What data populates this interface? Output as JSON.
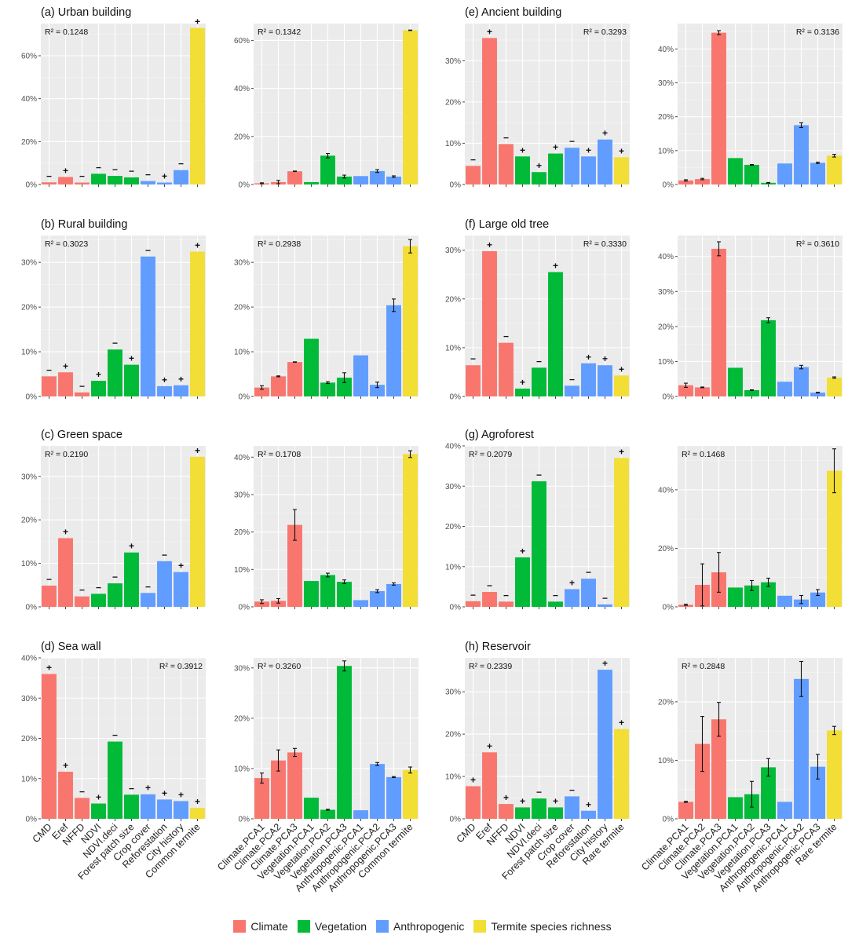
{
  "colors": {
    "Climate": "#F8766D",
    "Vegetation": "#00BA38",
    "Anthropogenic": "#619CFF",
    "Termite species richness": "#F2DE35",
    "panel_bg": "#EBEBEB",
    "grid": "#FFFFFF"
  },
  "legend": {
    "position": "bottom",
    "items": [
      {
        "label": "Climate",
        "group": "Climate"
      },
      {
        "label": "Vegetation",
        "group": "Vegetation"
      },
      {
        "label": "Anthropogenic",
        "group": "Anthropogenic"
      },
      {
        "label": "Termite species richness",
        "group": "Termite species richness"
      }
    ]
  },
  "chart_data": [
    {
      "type": "bar",
      "panel": "a-left",
      "title": "(a) Urban building",
      "r2_label": "R² = 0.1248",
      "r2_position": "top-left",
      "categories": [
        "CMD",
        "Eref",
        "NFFD",
        "NDVI",
        "NDVI.deci",
        "Forest patch size",
        "Crop cover",
        "Reforestation",
        "City history",
        "Common termite"
      ],
      "groups": [
        "Climate",
        "Climate",
        "Climate",
        "Vegetation",
        "Vegetation",
        "Vegetation",
        "Anthropogenic",
        "Anthropogenic",
        "Anthropogenic",
        "Termite species richness"
      ],
      "values": [
        1.0,
        3.5,
        0.9,
        5.0,
        4.0,
        3.3,
        1.6,
        0.9,
        6.7,
        73.0
      ],
      "signs": [
        "−",
        "+",
        "−",
        "−",
        "−",
        "−",
        "−",
        "+",
        "−",
        "+"
      ],
      "ylim": [
        0,
        75
      ],
      "yticks": [
        0,
        20,
        40,
        60
      ],
      "ytick_labels": [
        "0%",
        "20%",
        "40%",
        "60%"
      ]
    },
    {
      "type": "bar",
      "panel": "a-right",
      "title": "",
      "r2_label": "R² = 0.1342",
      "r2_position": "top-left",
      "categories": [
        "Climate.PCA1",
        "Climate.PCA2",
        "Climate.PCA3",
        "Vegetation.PCA1",
        "Vegetation.PCA2",
        "Vegetation.PCA3",
        "Anthropogenic.PCA1",
        "Anthropogenic.PCA2",
        "Anthropogenic.PCA3",
        "Common termite"
      ],
      "groups": [
        "Climate",
        "Climate",
        "Climate",
        "Vegetation",
        "Vegetation",
        "Vegetation",
        "Anthropogenic",
        "Anthropogenic",
        "Anthropogenic",
        "Termite species richness"
      ],
      "values": [
        0.5,
        1.0,
        5.5,
        1.0,
        12.0,
        3.3,
        3.5,
        5.6,
        3.3,
        64.2
      ],
      "errors": [
        0.2,
        0.7,
        0.1,
        0,
        0.9,
        0.6,
        0,
        0.6,
        0.3,
        0.1
      ],
      "ylim": [
        0,
        67
      ],
      "yticks": [
        0,
        20,
        40,
        60
      ],
      "ytick_labels": [
        "0%",
        "20%",
        "40%",
        "60%"
      ]
    },
    {
      "type": "bar",
      "panel": "e-left",
      "title": "(e) Ancient building",
      "r2_label": "R² = 0.3293",
      "r2_position": "top-right",
      "categories": [
        "CMD",
        "Eref",
        "NFFD",
        "NDVI",
        "NDVI.deci",
        "Forest patch size",
        "Crop cover",
        "Reforestation",
        "City history",
        "Rare termite"
      ],
      "groups": [
        "Climate",
        "Climate",
        "Climate",
        "Vegetation",
        "Vegetation",
        "Vegetation",
        "Anthropogenic",
        "Anthropogenic",
        "Anthropogenic",
        "Termite species richness"
      ],
      "values": [
        4.5,
        35.5,
        9.8,
        6.8,
        3.0,
        7.5,
        8.9,
        6.8,
        10.9,
        6.6
      ],
      "signs": [
        "−",
        "+",
        "−",
        "+",
        "+",
        "+",
        "−",
        "+",
        "+",
        "+"
      ],
      "ylim": [
        0,
        39
      ],
      "yticks": [
        0,
        10,
        20,
        30
      ],
      "ytick_labels": [
        "0%",
        "10%",
        "20%",
        "30%"
      ]
    },
    {
      "type": "bar",
      "panel": "e-right",
      "title": "",
      "r2_label": "R² = 0.3136",
      "r2_position": "top-right",
      "categories": [
        "Climate.PCA1",
        "Climate.PCA2",
        "Climate.PCA3",
        "Vegetation.PCA1",
        "Vegetation.PCA2",
        "Vegetation.PCA3",
        "Anthropogenic.PCA1",
        "Anthropogenic.PCA2",
        "Anthropogenic.PCA3",
        "Rare termite"
      ],
      "groups": [
        "Climate",
        "Climate",
        "Climate",
        "Vegetation",
        "Vegetation",
        "Vegetation",
        "Anthropogenic",
        "Anthropogenic",
        "Anthropogenic",
        "Termite species richness"
      ],
      "values": [
        1.2,
        1.6,
        44.8,
        7.8,
        5.8,
        0.5,
        6.2,
        17.5,
        6.4,
        8.5
      ],
      "errors": [
        0.2,
        0.2,
        0.6,
        0,
        0.1,
        0.1,
        0,
        0.7,
        0.2,
        0.4
      ],
      "ylim": [
        0,
        47.5
      ],
      "yticks": [
        0,
        10,
        20,
        30,
        40
      ],
      "ytick_labels": [
        "0%",
        "10%",
        "20%",
        "30%",
        "40%"
      ]
    },
    {
      "type": "bar",
      "panel": "b-left",
      "title": "(b) Rural building",
      "r2_label": "R² = 0.3023",
      "r2_position": "top-left",
      "categories": [
        "CMD",
        "Eref",
        "NFFD",
        "NDVI",
        "NDVI.deci",
        "Forest patch size",
        "Crop cover",
        "Reforestation",
        "City history",
        "Common termite"
      ],
      "groups": [
        "Climate",
        "Climate",
        "Climate",
        "Vegetation",
        "Vegetation",
        "Vegetation",
        "Anthropogenic",
        "Anthropogenic",
        "Anthropogenic",
        "Termite species richness"
      ],
      "values": [
        4.5,
        5.4,
        0.9,
        3.5,
        10.5,
        7.1,
        31.3,
        2.3,
        2.5,
        32.4
      ],
      "signs": [
        "−",
        "+",
        "−",
        "+",
        "−",
        "+",
        "−",
        "+",
        "+",
        "+"
      ],
      "ylim": [
        0,
        36
      ],
      "yticks": [
        0,
        10,
        20,
        30
      ],
      "ytick_labels": [
        "0%",
        "10%",
        "20%",
        "30%"
      ]
    },
    {
      "type": "bar",
      "panel": "b-right",
      "title": "",
      "r2_label": "R² = 0.2938",
      "r2_position": "top-left",
      "categories": [
        "Climate.PCA1",
        "Climate.PCA2",
        "Climate.PCA3",
        "Vegetation.PCA1",
        "Vegetation.PCA2",
        "Vegetation.PCA3",
        "Anthropogenic.PCA1",
        "Anthropogenic.PCA2",
        "Anthropogenic.PCA3",
        "Common termite"
      ],
      "groups": [
        "Climate",
        "Climate",
        "Climate",
        "Vegetation",
        "Vegetation",
        "Vegetation",
        "Anthropogenic",
        "Anthropogenic",
        "Anthropogenic",
        "Termite species richness"
      ],
      "values": [
        2.0,
        4.5,
        7.7,
        12.9,
        3.1,
        4.2,
        9.2,
        2.6,
        20.4,
        33.6
      ],
      "errors": [
        0.4,
        0.1,
        0.05,
        0,
        0.2,
        1.1,
        0,
        0.6,
        1.4,
        1.5
      ],
      "ylim": [
        0,
        36
      ],
      "yticks": [
        0,
        10,
        20,
        30
      ],
      "ytick_labels": [
        "0%",
        "10%",
        "20%",
        "30%"
      ]
    },
    {
      "type": "bar",
      "panel": "f-left",
      "title": "(f) Large old tree",
      "r2_label": "R² = 0.3330",
      "r2_position": "top-right",
      "categories": [
        "CMD",
        "Eref",
        "NFFD",
        "NDVI",
        "NDVI.deci",
        "Forest patch size",
        "Crop cover",
        "Reforestation",
        "City history",
        "Rare termite"
      ],
      "groups": [
        "Climate",
        "Climate",
        "Climate",
        "Vegetation",
        "Vegetation",
        "Vegetation",
        "Anthropogenic",
        "Anthropogenic",
        "Anthropogenic",
        "Termite species richness"
      ],
      "values": [
        6.4,
        29.8,
        11.0,
        1.6,
        5.9,
        25.5,
        2.2,
        6.8,
        6.4,
        4.3
      ],
      "signs": [
        "−",
        "+",
        "−",
        "+",
        "−",
        "+",
        "−",
        "+",
        "+",
        "+"
      ],
      "ylim": [
        0,
        33
      ],
      "yticks": [
        0,
        10,
        20,
        30
      ],
      "ytick_labels": [
        "0%",
        "10%",
        "20%",
        "30%"
      ]
    },
    {
      "type": "bar",
      "panel": "f-right",
      "title": "",
      "r2_label": "R² = 0.3610",
      "r2_position": "top-right",
      "categories": [
        "Climate.PCA1",
        "Climate.PCA2",
        "Climate.PCA3",
        "Vegetation.PCA1",
        "Vegetation.PCA2",
        "Vegetation.PCA3",
        "Anthropogenic.PCA1",
        "Anthropogenic.PCA2",
        "Anthropogenic.PCA3",
        "Rare termite"
      ],
      "groups": [
        "Climate",
        "Climate",
        "Climate",
        "Vegetation",
        "Vegetation",
        "Vegetation",
        "Anthropogenic",
        "Anthropogenic",
        "Anthropogenic",
        "Termite species richness"
      ],
      "values": [
        3.2,
        2.6,
        42.2,
        8.2,
        1.8,
        21.8,
        4.2,
        8.4,
        1.1,
        5.4
      ],
      "errors": [
        0.6,
        0.1,
        2.0,
        0,
        0.1,
        0.7,
        0,
        0.5,
        0.1,
        0.2
      ],
      "ylim": [
        0,
        46
      ],
      "yticks": [
        0,
        10,
        20,
        30,
        40
      ],
      "ytick_labels": [
        "0%",
        "10%",
        "20%",
        "30%",
        "40%"
      ]
    },
    {
      "type": "bar",
      "panel": "c-left",
      "title": "(c) Green space",
      "r2_label": "R² = 0.2190",
      "r2_position": "top-left",
      "categories": [
        "CMD",
        "Eref",
        "NFFD",
        "NDVI",
        "NDVI.deci",
        "Forest patch size",
        "Crop cover",
        "Reforestation",
        "City history",
        "Common termite"
      ],
      "groups": [
        "Climate",
        "Climate",
        "Climate",
        "Vegetation",
        "Vegetation",
        "Vegetation",
        "Anthropogenic",
        "Anthropogenic",
        "Anthropogenic",
        "Termite species richness"
      ],
      "values": [
        4.9,
        15.8,
        2.4,
        3.0,
        5.4,
        12.5,
        3.2,
        10.5,
        8.0,
        34.5
      ],
      "signs": [
        "−",
        "+",
        "−",
        "−",
        "−",
        "+",
        "−",
        "−",
        "+",
        "+"
      ],
      "ylim": [
        0,
        37
      ],
      "yticks": [
        0,
        10,
        20,
        30
      ],
      "ytick_labels": [
        "0%",
        "10%",
        "20%",
        "30%"
      ]
    },
    {
      "type": "bar",
      "panel": "c-right",
      "title": "",
      "r2_label": "R² = 0.1708",
      "r2_position": "top-left",
      "categories": [
        "Climate.PCA1",
        "Climate.PCA2",
        "Climate.PCA3",
        "Vegetation.PCA1",
        "Vegetation.PCA2",
        "Vegetation.PCA3",
        "Anthropogenic.PCA1",
        "Anthropogenic.PCA2",
        "Anthropogenic.PCA3",
        "Common termite"
      ],
      "groups": [
        "Climate",
        "Climate",
        "Climate",
        "Vegetation",
        "Vegetation",
        "Vegetation",
        "Anthropogenic",
        "Anthropogenic",
        "Anthropogenic",
        "Termite species richness"
      ],
      "values": [
        1.4,
        1.6,
        21.9,
        6.9,
        8.5,
        6.7,
        1.8,
        4.2,
        6.1,
        40.8
      ],
      "errors": [
        0.5,
        0.6,
        4.1,
        0,
        0.5,
        0.5,
        0,
        0.4,
        0.3,
        0.9
      ],
      "ylim": [
        0,
        43
      ],
      "yticks": [
        0,
        10,
        20,
        30,
        40
      ],
      "ytick_labels": [
        "0%",
        "10%",
        "20%",
        "30%",
        "40%"
      ]
    },
    {
      "type": "bar",
      "panel": "g-left",
      "title": "(g) Agroforest",
      "r2_label": "R² = 0.2079",
      "r2_position": "top-left",
      "categories": [
        "CMD",
        "Eref",
        "NFFD",
        "NDVI",
        "NDVI.deci",
        "Forest patch size",
        "Crop cover",
        "Reforestation",
        "City history",
        "Rare termite"
      ],
      "groups": [
        "Climate",
        "Climate",
        "Climate",
        "Vegetation",
        "Vegetation",
        "Vegetation",
        "Anthropogenic",
        "Anthropogenic",
        "Anthropogenic",
        "Termite species richness"
      ],
      "values": [
        1.4,
        3.7,
        1.3,
        12.3,
        31.2,
        1.3,
        4.4,
        7.0,
        0.6,
        37.0
      ],
      "signs": [
        "−",
        "−",
        "−",
        "+",
        "−",
        "−",
        "+",
        "−",
        "−",
        "+"
      ],
      "ylim": [
        0,
        40
      ],
      "yticks": [
        0,
        10,
        20,
        30,
        40
      ],
      "ytick_labels": [
        "0%",
        "10%",
        "20%",
        "30%",
        "40%"
      ]
    },
    {
      "type": "bar",
      "panel": "g-right",
      "title": "",
      "r2_label": "R² = 0.1468",
      "r2_position": "top-left",
      "categories": [
        "Climate.PCA1",
        "Climate.PCA2",
        "Climate.PCA3",
        "Vegetation.PCA1",
        "Vegetation.PCA2",
        "Vegetation.PCA3",
        "Anthropogenic.PCA1",
        "Anthropogenic.PCA2",
        "Anthropogenic.PCA3",
        "Rare termite"
      ],
      "groups": [
        "Climate",
        "Climate",
        "Climate",
        "Vegetation",
        "Vegetation",
        "Vegetation",
        "Anthropogenic",
        "Anthropogenic",
        "Anthropogenic",
        "Termite species richness"
      ],
      "values": [
        0.7,
        7.5,
        11.8,
        6.6,
        7.3,
        8.4,
        3.8,
        2.5,
        4.9,
        46.5
      ],
      "errors": [
        0.2,
        7.2,
        6.8,
        0,
        1.7,
        1.4,
        0,
        1.4,
        1.0,
        7.5
      ],
      "ylim": [
        0,
        55
      ],
      "yticks": [
        0,
        20,
        40
      ],
      "ytick_labels": [
        "0%",
        "20%",
        "40%"
      ]
    },
    {
      "type": "bar",
      "panel": "d-left",
      "title": "(d) Sea wall",
      "r2_label": "R² = 0.3912",
      "r2_position": "top-right",
      "categories": [
        "CMD",
        "Eref",
        "NFFD",
        "NDVI",
        "NDVI.deci",
        "Forest patch size",
        "Crop cover",
        "Reforestation",
        "City history",
        "Common termite"
      ],
      "groups": [
        "Climate",
        "Climate",
        "Climate",
        "Vegetation",
        "Vegetation",
        "Vegetation",
        "Anthropogenic",
        "Anthropogenic",
        "Anthropogenic",
        "Termite species richness"
      ],
      "values": [
        36.0,
        11.7,
        5.2,
        3.8,
        19.2,
        6.0,
        6.1,
        4.8,
        4.4,
        2.7
      ],
      "signs": [
        "+",
        "+",
        "−",
        "+",
        "−",
        "−",
        "+",
        "+",
        "+",
        "+"
      ],
      "ylim": [
        0,
        40
      ],
      "yticks": [
        0,
        10,
        20,
        30,
        40
      ],
      "ytick_labels": [
        "0%",
        "10%",
        "20%",
        "30%",
        "40%"
      ]
    },
    {
      "type": "bar",
      "panel": "d-right",
      "title": "",
      "r2_label": "R² = 0.3260",
      "r2_position": "top-left",
      "categories": [
        "Climate.PCA1",
        "Climate.PCA2",
        "Climate.PCA3",
        "Vegetation.PCA1",
        "Vegetation.PCA2",
        "Vegetation.PCA3",
        "Anthropogenic.PCA1",
        "Anthropogenic.PCA2",
        "Anthropogenic.PCA3",
        "Common termite"
      ],
      "groups": [
        "Climate",
        "Climate",
        "Climate",
        "Vegetation",
        "Vegetation",
        "Vegetation",
        "Anthropogenic",
        "Anthropogenic",
        "Anthropogenic",
        "Termite species richness"
      ],
      "values": [
        8.1,
        11.6,
        13.2,
        4.2,
        1.8,
        30.4,
        1.7,
        10.9,
        8.3,
        9.7
      ],
      "errors": [
        1.0,
        2.1,
        0.8,
        0,
        0.1,
        1.0,
        0,
        0.3,
        0.1,
        0.6
      ],
      "ylim": [
        0,
        32
      ],
      "yticks": [
        0,
        10,
        20,
        30
      ],
      "ytick_labels": [
        "0%",
        "10%",
        "20%",
        "30%"
      ]
    },
    {
      "type": "bar",
      "panel": "h-left",
      "title": "(h) Reservoir",
      "r2_label": "R² = 0.2339",
      "r2_position": "top-left",
      "categories": [
        "CMD",
        "Eref",
        "NFFD",
        "NDVI",
        "NDVI.deci",
        "Forest patch size",
        "Crop cover",
        "Reforestation",
        "City history",
        "Rare termite"
      ],
      "groups": [
        "Climate",
        "Climate",
        "Climate",
        "Vegetation",
        "Vegetation",
        "Vegetation",
        "Anthropogenic",
        "Anthropogenic",
        "Anthropogenic",
        "Termite species richness"
      ],
      "values": [
        7.7,
        15.7,
        3.5,
        2.7,
        4.8,
        2.7,
        5.3,
        1.9,
        35.2,
        21.2
      ],
      "signs": [
        "+",
        "+",
        "+",
        "+",
        "−",
        "+",
        "−",
        "+",
        "+",
        "+"
      ],
      "ylim": [
        0,
        38
      ],
      "yticks": [
        0,
        10,
        20,
        30
      ],
      "ytick_labels": [
        "0%",
        "10%",
        "20%",
        "30%"
      ]
    },
    {
      "type": "bar",
      "panel": "h-right",
      "title": "",
      "r2_label": "R² = 0.2848",
      "r2_position": "top-left",
      "categories": [
        "Climate.PCA1",
        "Climate.PCA2",
        "Climate.PCA3",
        "Vegetation.PCA1",
        "Vegetation.PCA2",
        "Vegetation.PCA3",
        "Anthropogenic.PCA1",
        "Anthropogenic.PCA2",
        "Anthropogenic.PCA3",
        "Rare termite"
      ],
      "groups": [
        "Climate",
        "Climate",
        "Climate",
        "Vegetation",
        "Vegetation",
        "Vegetation",
        "Anthropogenic",
        "Anthropogenic",
        "Anthropogenic",
        "Termite species richness"
      ],
      "values": [
        2.9,
        12.8,
        17.0,
        3.7,
        4.2,
        8.8,
        2.9,
        23.9,
        8.9,
        15.1
      ],
      "errors": [
        0.1,
        4.7,
        2.9,
        0,
        2.2,
        1.5,
        0,
        3.0,
        2.1,
        0.7
      ],
      "ylim": [
        0,
        27.5
      ],
      "yticks": [
        0,
        10,
        20
      ],
      "ytick_labels": [
        "0%",
        "10%",
        "20%"
      ]
    }
  ]
}
